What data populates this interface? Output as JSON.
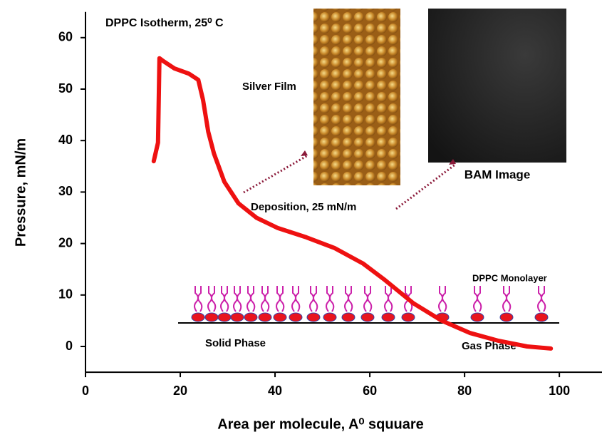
{
  "chart_data": {
    "type": "line",
    "title": "DPPC Isotherm, 25⁰ C",
    "x_label": "Area per molecule, A⁰ squuare",
    "y_label": "Pressure, mN/m",
    "annotations": [
      "Silver Film",
      "BAM Image",
      "Deposition, 25 mN/m",
      "DPPC Monolayer",
      "Solid Phase",
      "Gas Phase"
    ],
    "series": [
      {
        "color": "#ee1111",
        "x": [
          14.4,
          15.3,
          15.6,
          16.5,
          18.8,
          21.8,
          23.8,
          24.8,
          25.9,
          27.1,
          29.3,
          32.3,
          36.1,
          40.6,
          46.6,
          52.6,
          58.6,
          63.2,
          69.2,
          75.2,
          81.2,
          87.2,
          93.2,
          98.2
        ],
        "values": [
          36,
          39.6,
          56,
          55.4,
          54,
          53,
          51.8,
          47.9,
          41.7,
          37.5,
          32,
          27.8,
          25,
          23,
          21.2,
          19.1,
          16.1,
          12.9,
          8.4,
          5,
          2.6,
          1.1,
          0,
          -0.4
        ]
      }
    ],
    "xlim": [
      0,
      109
    ],
    "xticks": [
      0,
      20,
      40,
      60,
      80,
      100
    ],
    "ylim": [
      -5,
      65
    ],
    "yticks": [
      0,
      10,
      20,
      30,
      40,
      50,
      60
    ]
  }
}
